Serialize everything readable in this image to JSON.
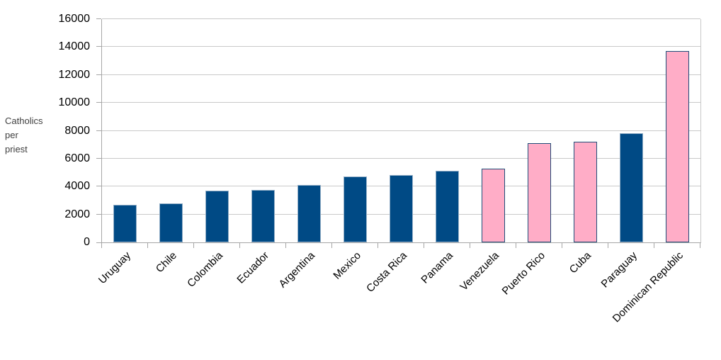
{
  "chart_data": {
    "type": "bar",
    "title": "",
    "xlabel": "",
    "ylabel": "Catholics per priest",
    "ylabel_lines": [
      "Catholics",
      "per",
      "priest"
    ],
    "categories": [
      "Uruguay",
      "Chile",
      "Colombia",
      "Ecuador",
      "Argentina",
      "Mexico",
      "Costa Rica",
      "Panama",
      "Venezuela",
      "Puerto Rico",
      "Cuba",
      "Paraguay",
      "Dominican Republic"
    ],
    "values": [
      2700,
      2800,
      3700,
      3750,
      4100,
      4700,
      4850,
      5150,
      5300,
      7100,
      7200,
      7800,
      13700
    ],
    "bar_color_keys": [
      "blue",
      "blue",
      "blue",
      "blue",
      "blue",
      "blue",
      "blue",
      "blue",
      "pink",
      "pink",
      "pink",
      "blue",
      "pink"
    ],
    "colors": {
      "blue_fill": "#004A85",
      "blue_border": "#94AFC7",
      "pink_fill": "#FFADC7",
      "pink_border": "#1F4E79",
      "grid": "#C9C9C9",
      "axis": "#A6A6A6",
      "tick_text": "#000000",
      "ylabel_text": "#3F3F3F",
      "background": "#FFFFFF"
    },
    "ylim": [
      0,
      16000
    ],
    "yticks": [
      0,
      2000,
      4000,
      6000,
      8000,
      10000,
      12000,
      14000,
      16000
    ],
    "grid": true,
    "legend": "none",
    "xtick_rotation_deg": 45
  }
}
